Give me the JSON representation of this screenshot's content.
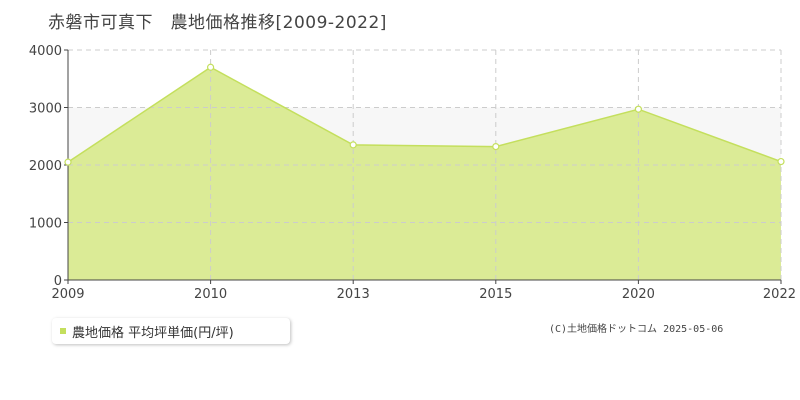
{
  "title": "赤磐市可真下　農地価格推移[2009-2022]",
  "copyright": "(C)土地価格ドットコム 2025-05-06",
  "legend": {
    "label": "農地価格 平均坪単価(円/坪)"
  },
  "colors": {
    "fill": "#dbeb96",
    "line": "#c4df5d",
    "marker_fill": "#ffffff",
    "grid": "#cccccc",
    "band": "#f7f7f7",
    "axis": "#444444"
  },
  "chart_data": {
    "type": "area",
    "title": "赤磐市可真下　農地価格推移[2009-2022]",
    "x": [
      2009,
      2010,
      2013,
      2015,
      2020,
      2022
    ],
    "x_tick_labels": [
      "2009",
      "2010",
      "2013",
      "2015",
      "2020",
      "2022"
    ],
    "series": [
      {
        "name": "農地価格 平均坪単価(円/坪)",
        "values": [
          2050,
          3700,
          2350,
          2320,
          2970,
          2060
        ]
      }
    ],
    "ylim": [
      0,
      4000
    ],
    "y_ticks": [
      0,
      1000,
      2000,
      3000,
      4000
    ],
    "y_tick_labels": [
      "0",
      "1000",
      "2000",
      "3000",
      "4000"
    ],
    "grid": true,
    "legend_position": "bottom-left"
  }
}
